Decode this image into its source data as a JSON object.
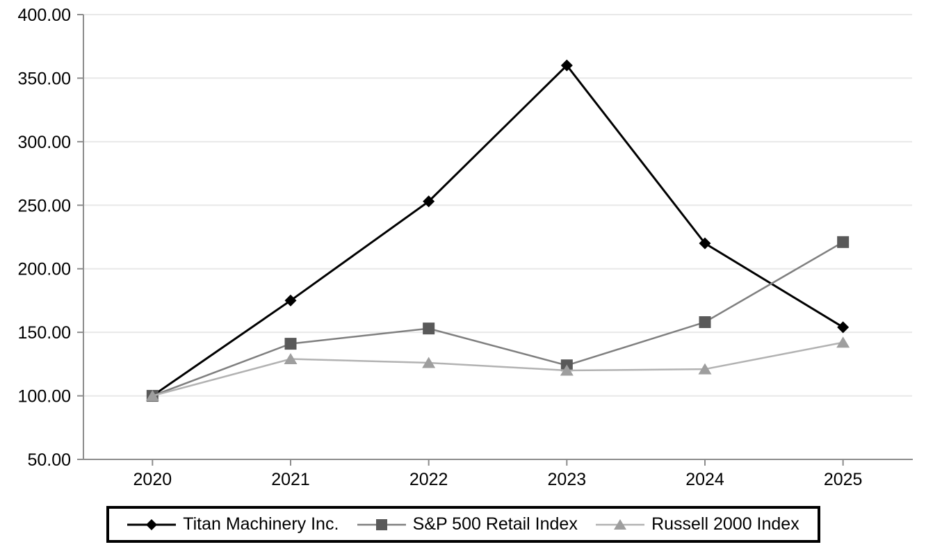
{
  "chart_data": {
    "type": "line",
    "categories": [
      "2020",
      "2021",
      "2022",
      "2023",
      "2024",
      "2025"
    ],
    "series": [
      {
        "name": "Titan Machinery Inc.",
        "marker": "diamond",
        "line_color": "#000000",
        "marker_color": "#000000",
        "line_width": 3,
        "values": [
          100,
          175,
          253,
          360,
          220,
          154
        ]
      },
      {
        "name": "S&P 500 Retail Index",
        "marker": "square",
        "line_color": "#7f7f7f",
        "marker_color": "#595959",
        "line_width": 2.5,
        "values": [
          100,
          141,
          153,
          124,
          158,
          221
        ]
      },
      {
        "name": "Russell 2000 Index",
        "marker": "triangle",
        "line_color": "#b2b2b2",
        "marker_color": "#9e9e9e",
        "line_width": 2.5,
        "values": [
          100,
          129,
          126,
          120,
          121,
          142
        ]
      }
    ],
    "ylim": [
      50,
      400
    ],
    "ytick_step": 50,
    "ytick_labels": [
      "50.00",
      "100.00",
      "150.00",
      "200.00",
      "250.00",
      "300.00",
      "350.00",
      "400.00"
    ],
    "grid": "horizontal",
    "legend_position": "bottom-boxed",
    "axis_color": "#8c8c8c",
    "grid_color": "#e8e8e8",
    "text_color": "#000000"
  }
}
